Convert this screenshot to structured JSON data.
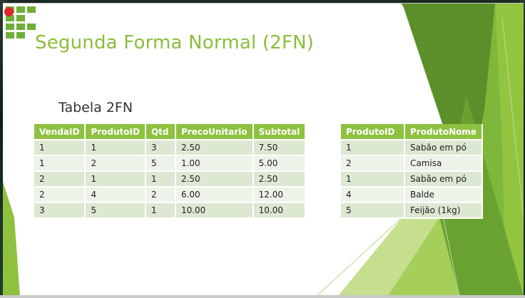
{
  "slide": {
    "title": "Segunda Forma Normal (2FN)",
    "subtitle": "Tabela 2FN"
  },
  "colors": {
    "accent_green": "#8ec13f",
    "title_green": "#8bbd3a",
    "row_odd": "#dde8d2",
    "row_even": "#eef3e9",
    "record_dot": "#e0252b"
  },
  "logo": {
    "icon": "ifsp-logo-icon",
    "color": "#6fae3a"
  },
  "table_vendas": {
    "headers": [
      "VendaID",
      "ProdutoID",
      "Qtd",
      "PrecoUnitario",
      "Subtotal"
    ],
    "rows": [
      [
        "1",
        "1",
        "3",
        "2.50",
        "7.50"
      ],
      [
        "1",
        "2",
        "5",
        "1.00",
        "5.00"
      ],
      [
        "2",
        "1",
        "1",
        "2.50",
        "2.50"
      ],
      [
        "2",
        "4",
        "2",
        "6.00",
        "12.00"
      ],
      [
        "3",
        "5",
        "1",
        "10.00",
        "10.00"
      ]
    ]
  },
  "table_produtos": {
    "headers": [
      "ProdutoID",
      "ProdutoNome"
    ],
    "rows": [
      [
        "1",
        "Sabão em pó"
      ],
      [
        "2",
        "Camisa"
      ],
      [
        "1",
        "Sabão em pó"
      ],
      [
        "4",
        "Balde"
      ],
      [
        "5",
        "Feijão (1kg)"
      ]
    ]
  }
}
